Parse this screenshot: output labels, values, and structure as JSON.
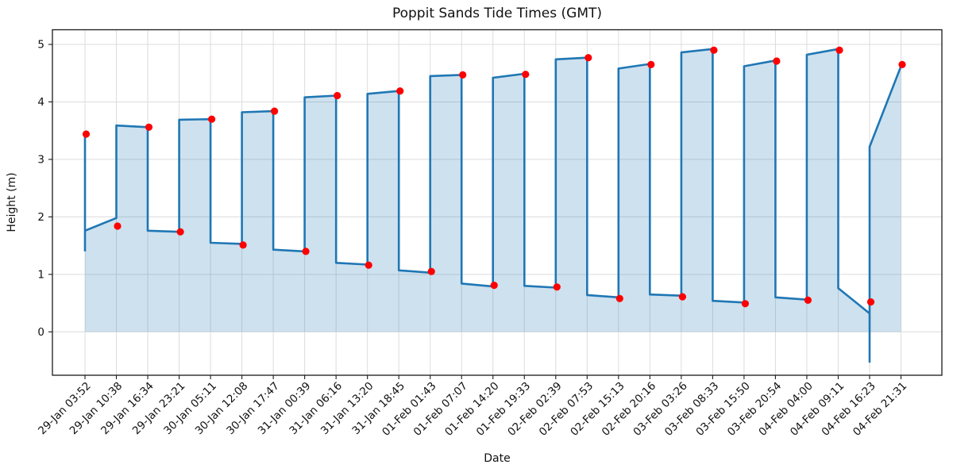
{
  "chart_data": {
    "type": "line",
    "title": "Poppit Sands Tide Times (GMT)",
    "xlabel": "Date",
    "ylabel": "Height (m)",
    "yticks": [
      0,
      1,
      2,
      3,
      4,
      5
    ],
    "ylim": [
      -0.75,
      5.26
    ],
    "grid": true,
    "legend": false,
    "line_color": "#1f77b4",
    "fill_color": "#1f77b4",
    "fill_opacity": 0.22,
    "marker_color": "#ff0000",
    "grid_color": "#dcdcdc",
    "spine_color": "#1a1a1a",
    "categories": [
      "29-Jan 03:52",
      "29-Jan 10:38",
      "29-Jan 16:34",
      "29-Jan 23:21",
      "30-Jan 05:11",
      "30-Jan 12:08",
      "30-Jan 17:47",
      "31-Jan 00:39",
      "31-Jan 06:16",
      "31-Jan 13:20",
      "31-Jan 18:45",
      "01-Feb 01:43",
      "01-Feb 07:07",
      "01-Feb 14:20",
      "01-Feb 19:33",
      "02-Feb 02:39",
      "02-Feb 07:53",
      "02-Feb 15:13",
      "02-Feb 20:16",
      "03-Feb 03:26",
      "03-Feb 08:33",
      "03-Feb 15:50",
      "03-Feb 20:54",
      "04-Feb 04:00",
      "04-Feb 09:11",
      "04-Feb 16:23",
      "04-Feb 21:31"
    ],
    "values": [
      3.44,
      1.84,
      3.56,
      1.74,
      3.7,
      1.51,
      3.84,
      1.4,
      4.11,
      1.16,
      4.19,
      1.05,
      4.47,
      0.81,
      4.48,
      0.78,
      4.77,
      0.58,
      4.65,
      0.61,
      4.9,
      0.49,
      4.71,
      0.55,
      4.9,
      0.52,
      4.65
    ],
    "series_note": "red markers = tide extremes (alternating high/low); blue stepped curve + shaded area = tide height profile",
    "line_path": [
      [
        0,
        1.4
      ],
      [
        0,
        3.44
      ],
      [
        0,
        1.76
      ],
      [
        1,
        1.98
      ],
      [
        1,
        3.59
      ],
      [
        2,
        3.56
      ],
      [
        2,
        1.76
      ],
      [
        3,
        1.74
      ],
      [
        3,
        3.69
      ],
      [
        4,
        3.7
      ],
      [
        4,
        1.55
      ],
      [
        5,
        1.53
      ],
      [
        5,
        3.82
      ],
      [
        6,
        3.84
      ],
      [
        6,
        1.43
      ],
      [
        7,
        1.4
      ],
      [
        7,
        4.08
      ],
      [
        8,
        4.11
      ],
      [
        8,
        1.2
      ],
      [
        9,
        1.17
      ],
      [
        9,
        4.14
      ],
      [
        10,
        4.19
      ],
      [
        10,
        1.07
      ],
      [
        11,
        1.03
      ],
      [
        11,
        4.45
      ],
      [
        12,
        4.47
      ],
      [
        12,
        0.84
      ],
      [
        13,
        0.79
      ],
      [
        13,
        4.42
      ],
      [
        14,
        4.49
      ],
      [
        14,
        0.8
      ],
      [
        15,
        0.77
      ],
      [
        15,
        4.74
      ],
      [
        16,
        4.77
      ],
      [
        16,
        0.64
      ],
      [
        17,
        0.6
      ],
      [
        17,
        4.58
      ],
      [
        18,
        4.66
      ],
      [
        18,
        0.65
      ],
      [
        19,
        0.63
      ],
      [
        19,
        4.86
      ],
      [
        20,
        4.92
      ],
      [
        20,
        0.54
      ],
      [
        21,
        0.51
      ],
      [
        21,
        4.62
      ],
      [
        22,
        4.72
      ],
      [
        22,
        0.6
      ],
      [
        23,
        0.56
      ],
      [
        23,
        4.82
      ],
      [
        24,
        4.92
      ],
      [
        24,
        0.76
      ],
      [
        25,
        0.32
      ],
      [
        25,
        -0.52
      ],
      [
        25,
        3.22
      ],
      [
        26,
        4.62
      ]
    ]
  }
}
